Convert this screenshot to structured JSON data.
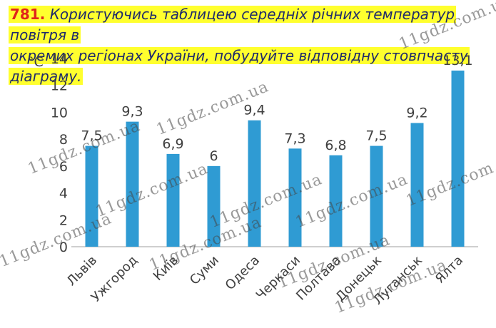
{
  "task": {
    "number": "781.",
    "line1": "Користуючись таблицею середніх річних температур повітря в",
    "line2": "окремих регіонах України, побудуйте відповідну стовпчасту діаграму."
  },
  "watermark": "11gdz.com.ua",
  "colors": {
    "bar": "#2f9bd3",
    "highlight": "#ffff2e",
    "number": "#e0241b"
  },
  "chart_data": {
    "type": "bar",
    "ylabel": "°C",
    "ylim": [
      0,
      14
    ],
    "yticks": [
      0,
      2,
      4,
      6,
      8,
      10,
      12,
      14
    ],
    "categories": [
      "Львів",
      "Ужгород",
      "Київ",
      "Суми",
      "Одеса",
      "Черкаси",
      "Полтава",
      "Донецьк",
      "Луганськ",
      "Ялта"
    ],
    "values": [
      7.5,
      9.3,
      6.9,
      6,
      9.4,
      7.3,
      6.8,
      7.5,
      9.2,
      13.1
    ],
    "data_labels": [
      "7,5",
      "9,3",
      "6,9",
      "6",
      "9,4",
      "7,3",
      "6,8",
      "7,5",
      "9,2",
      "13,1"
    ],
    "grid": false,
    "legend": "none"
  }
}
